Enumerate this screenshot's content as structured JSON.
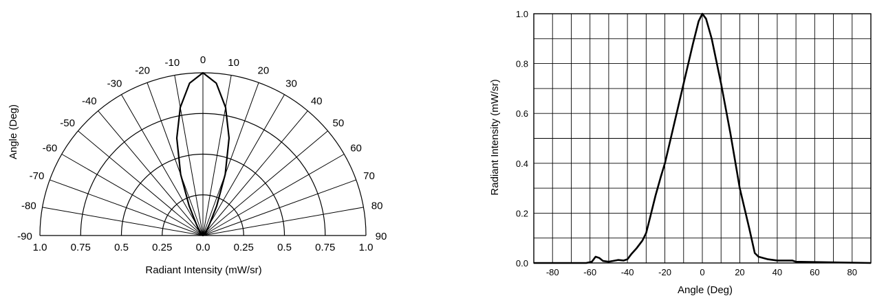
{
  "chart_data": [
    {
      "type": "polar",
      "ylabel": "Angle (Deg)",
      "xlabel": "Radiant Intensity (mW/sr)",
      "angle_range": [
        -90,
        90
      ],
      "angle_step": 10,
      "angle_ticks": [
        "-90",
        "-80",
        "-70",
        "-60",
        "-50",
        "-40",
        "-30",
        "-20",
        "-10",
        "0",
        "10",
        "20",
        "30",
        "40",
        "50",
        "60",
        "70",
        "80",
        "90"
      ],
      "radial_ticks": [
        "1.0",
        "0.75",
        "0.5",
        "0.25",
        "0.0",
        "0.25",
        "0.5",
        "0.75",
        "1.0"
      ],
      "radial_rings": [
        0.25,
        0.5,
        0.75,
        1.0
      ],
      "series": [
        {
          "angle": [
            -90,
            -60,
            -50,
            -40,
            -30,
            -25,
            -20,
            -15,
            -10,
            -5,
            0,
            5,
            10,
            15,
            20,
            25,
            30,
            40,
            50,
            60,
            90
          ],
          "intensity": [
            0,
            0.02,
            0.02,
            0.03,
            0.08,
            0.2,
            0.4,
            0.62,
            0.8,
            0.94,
            1.0,
            0.94,
            0.8,
            0.62,
            0.4,
            0.2,
            0.08,
            0.03,
            0.02,
            0.02,
            0
          ]
        }
      ]
    },
    {
      "type": "line",
      "xlabel": "Angle (Deg)",
      "ylabel": "Radiant Intensity (mW/sr)",
      "xlim": [
        -90,
        90
      ],
      "ylim": [
        0,
        1.0
      ],
      "x_ticks": [
        -80,
        -60,
        -40,
        -20,
        0,
        20,
        40,
        60,
        80
      ],
      "x_tick_labels": [
        "-80",
        "-60",
        "-40",
        "-20",
        "0",
        "20",
        "40",
        "60",
        "80"
      ],
      "y_ticks": [
        0,
        0.2,
        0.4,
        0.6,
        0.8,
        1.0
      ],
      "y_tick_labels": [
        "0.0",
        "0.2",
        "0.4",
        "0.6",
        "0.8",
        "1.0"
      ],
      "grid": true,
      "series": [
        {
          "x": [
            -90,
            -62,
            -59,
            -57,
            -55,
            -53,
            -50,
            -45,
            -42,
            -40,
            -38,
            -35,
            -32,
            -30,
            -28,
            -25,
            -22,
            -20,
            -15,
            -10,
            -5,
            -2,
            0,
            2,
            5,
            10,
            15,
            20,
            25,
            28,
            30,
            35,
            40,
            45,
            48,
            50,
            90
          ],
          "y": [
            0,
            0,
            0.005,
            0.025,
            0.02,
            0.008,
            0.005,
            0.012,
            0.01,
            0.015,
            0.035,
            0.06,
            0.09,
            0.12,
            0.18,
            0.27,
            0.35,
            0.4,
            0.56,
            0.72,
            0.88,
            0.97,
            1.0,
            0.98,
            0.9,
            0.72,
            0.52,
            0.3,
            0.14,
            0.04,
            0.025,
            0.015,
            0.01,
            0.01,
            0.01,
            0.005,
            0
          ]
        }
      ]
    }
  ]
}
